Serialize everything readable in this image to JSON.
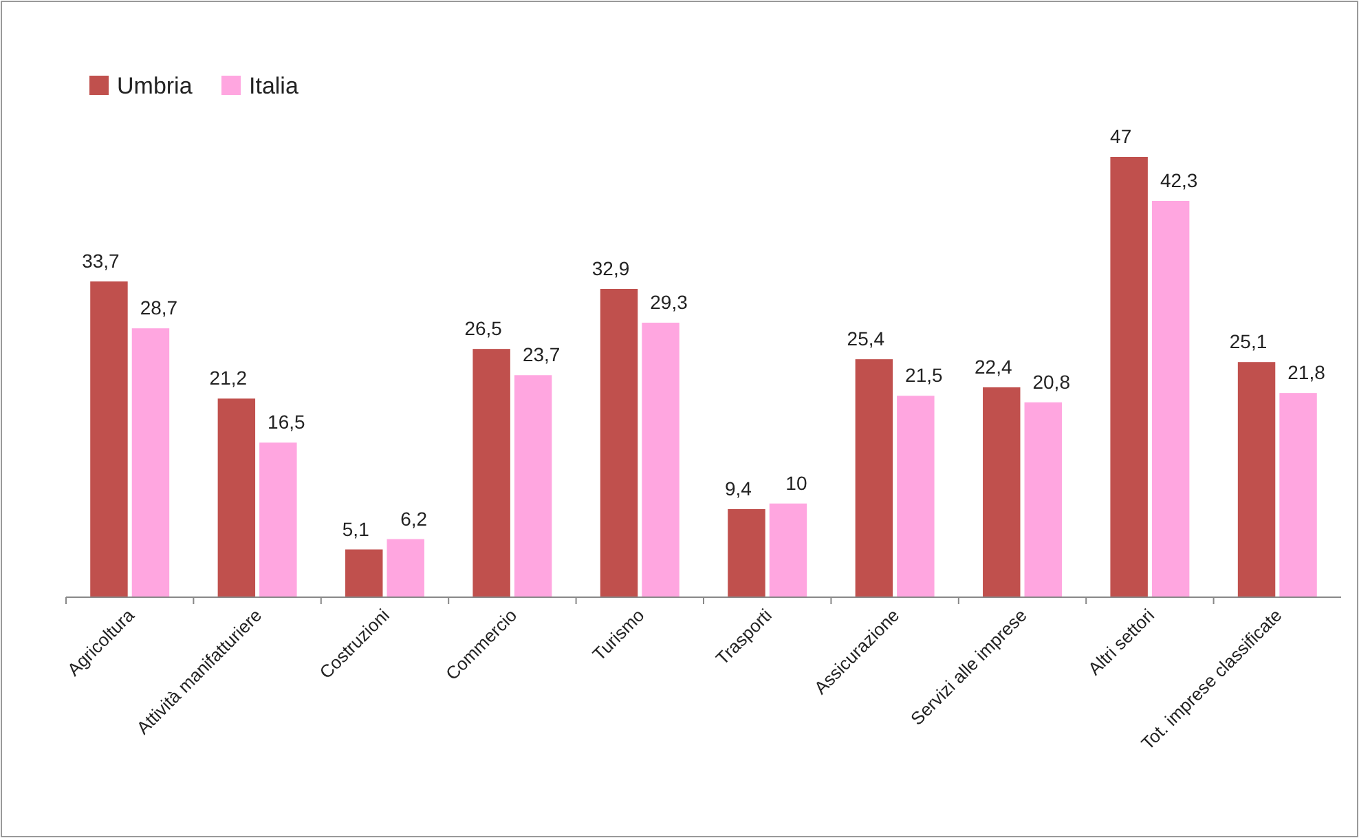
{
  "chart_data": {
    "type": "bar",
    "categories": [
      "Agricoltura",
      "Attività manifatturiere",
      "Costruzioni",
      "Commercio",
      "Turismo",
      "Trasporti",
      "Assicurazione",
      "Servizi alle imprese",
      "Altri settori",
      "Tot. imprese classificate"
    ],
    "series": [
      {
        "name": "Umbria",
        "color": "#c0504d",
        "values": [
          33.7,
          21.2,
          5.1,
          26.5,
          32.9,
          9.4,
          25.4,
          22.4,
          47,
          25.1
        ],
        "value_labels": [
          "33,7",
          "21,2",
          "5,1",
          "26,5",
          "32,9",
          "9,4",
          "25,4",
          "22,4",
          "47",
          "25,1"
        ]
      },
      {
        "name": "Italia",
        "color": "#ffa6e0",
        "values": [
          28.7,
          16.5,
          6.2,
          23.7,
          29.3,
          10,
          21.5,
          20.8,
          42.3,
          21.8
        ],
        "value_labels": [
          "28,7",
          "16,5",
          "6,2",
          "23,7",
          "29,3",
          "10",
          "21,5",
          "20,8",
          "42,3",
          "21,8"
        ]
      }
    ],
    "legend": "top left"
  }
}
